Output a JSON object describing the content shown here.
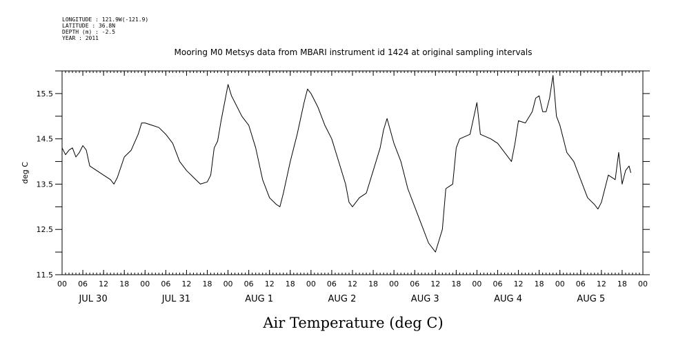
{
  "meta": [
    "LONGITUDE : 121.9W(-121.9)",
    "LATITUDE : 36.8N",
    "DEPTH (m) : -2.5",
    "YEAR : 2011"
  ],
  "chart_data": {
    "type": "line",
    "title": "Mooring M0 Metsys data from MBARI instrument id 1424 at original sampling intervals",
    "xlabel": "Air Temperature (deg C)",
    "ylabel": "deg C",
    "x_unit": "hours since JUL 30 00:00 (2011)",
    "xlim": [
      0,
      168
    ],
    "ylim": [
      11.5,
      16.0
    ],
    "y_ticks": [
      11.5,
      12.5,
      13.5,
      14.5,
      15.5
    ],
    "x_hour_ticks": [
      "00",
      "06",
      "12",
      "18",
      "00",
      "06",
      "12",
      "18",
      "00",
      "06",
      "12",
      "18",
      "00",
      "06",
      "12",
      "18",
      "00",
      "06",
      "12",
      "18",
      "00",
      "06",
      "12",
      "18",
      "00",
      "06",
      "12",
      "18",
      "00"
    ],
    "day_labels": [
      "JUL 30",
      "JUL 31",
      "AUG  1",
      "AUG  2",
      "AUG  3",
      "AUG  4",
      "AUG  5"
    ],
    "grid": false,
    "series": [
      {
        "color": "#000000",
        "points": [
          [
            0,
            14.3
          ],
          [
            1,
            14.15
          ],
          [
            2,
            14.25
          ],
          [
            3,
            14.3
          ],
          [
            4,
            14.1
          ],
          [
            5,
            14.2
          ],
          [
            6,
            14.35
          ],
          [
            7,
            14.25
          ],
          [
            8,
            13.9
          ],
          [
            12,
            13.7
          ],
          [
            14,
            13.6
          ],
          [
            15,
            13.5
          ],
          [
            16,
            13.65
          ],
          [
            18,
            14.1
          ],
          [
            20,
            14.25
          ],
          [
            22,
            14.6
          ],
          [
            23,
            14.85
          ],
          [
            24,
            14.85
          ],
          [
            26,
            14.8
          ],
          [
            28,
            14.75
          ],
          [
            30,
            14.6
          ],
          [
            32,
            14.4
          ],
          [
            34,
            14.0
          ],
          [
            36,
            13.8
          ],
          [
            38,
            13.65
          ],
          [
            40,
            13.5
          ],
          [
            42,
            13.55
          ],
          [
            43,
            13.7
          ],
          [
            44,
            14.3
          ],
          [
            45,
            14.45
          ],
          [
            46,
            14.9
          ],
          [
            47,
            15.3
          ],
          [
            48,
            15.7
          ],
          [
            49,
            15.45
          ],
          [
            50,
            15.3
          ],
          [
            52,
            15.0
          ],
          [
            54,
            14.8
          ],
          [
            56,
            14.3
          ],
          [
            58,
            13.6
          ],
          [
            60,
            13.2
          ],
          [
            62,
            13.05
          ],
          [
            63,
            13.0
          ],
          [
            64,
            13.3
          ],
          [
            66,
            14.0
          ],
          [
            68,
            14.6
          ],
          [
            70,
            15.3
          ],
          [
            71,
            15.6
          ],
          [
            72,
            15.5
          ],
          [
            74,
            15.2
          ],
          [
            76,
            14.8
          ],
          [
            78,
            14.5
          ],
          [
            80,
            14.0
          ],
          [
            82,
            13.5
          ],
          [
            83,
            13.1
          ],
          [
            84,
            13.0
          ],
          [
            86,
            13.2
          ],
          [
            88,
            13.3
          ],
          [
            90,
            13.8
          ],
          [
            92,
            14.3
          ],
          [
            93,
            14.7
          ],
          [
            94,
            14.95
          ],
          [
            96,
            14.4
          ],
          [
            98,
            14.0
          ],
          [
            100,
            13.4
          ],
          [
            102,
            13.0
          ],
          [
            104,
            12.6
          ],
          [
            106,
            12.2
          ],
          [
            108,
            12.0
          ],
          [
            110,
            12.5
          ],
          [
            111,
            13.4
          ],
          [
            112,
            13.45
          ],
          [
            113,
            13.5
          ],
          [
            114,
            14.3
          ],
          [
            115,
            14.5
          ],
          [
            118,
            14.6
          ],
          [
            120,
            15.3
          ],
          [
            121,
            14.6
          ],
          [
            124,
            14.5
          ],
          [
            126,
            14.4
          ],
          [
            128,
            14.2
          ],
          [
            130,
            14.0
          ],
          [
            131,
            14.4
          ],
          [
            132,
            14.9
          ],
          [
            134,
            14.85
          ],
          [
            136,
            15.1
          ],
          [
            137,
            15.4
          ],
          [
            138,
            15.45
          ],
          [
            139,
            15.1
          ],
          [
            140,
            15.1
          ],
          [
            141,
            15.4
          ],
          [
            142,
            15.9
          ],
          [
            143,
            15.0
          ],
          [
            144,
            14.8
          ],
          [
            146,
            14.2
          ],
          [
            148,
            14.0
          ],
          [
            150,
            13.6
          ],
          [
            152,
            13.2
          ],
          [
            154,
            13.05
          ],
          [
            155,
            12.95
          ],
          [
            156,
            13.1
          ],
          [
            157,
            13.4
          ],
          [
            158,
            13.7
          ],
          [
            160,
            13.6
          ],
          [
            161,
            14.2
          ],
          [
            162,
            13.5
          ],
          [
            163,
            13.8
          ],
          [
            164,
            13.9
          ],
          [
            164.5,
            13.75
          ]
        ]
      }
    ]
  }
}
